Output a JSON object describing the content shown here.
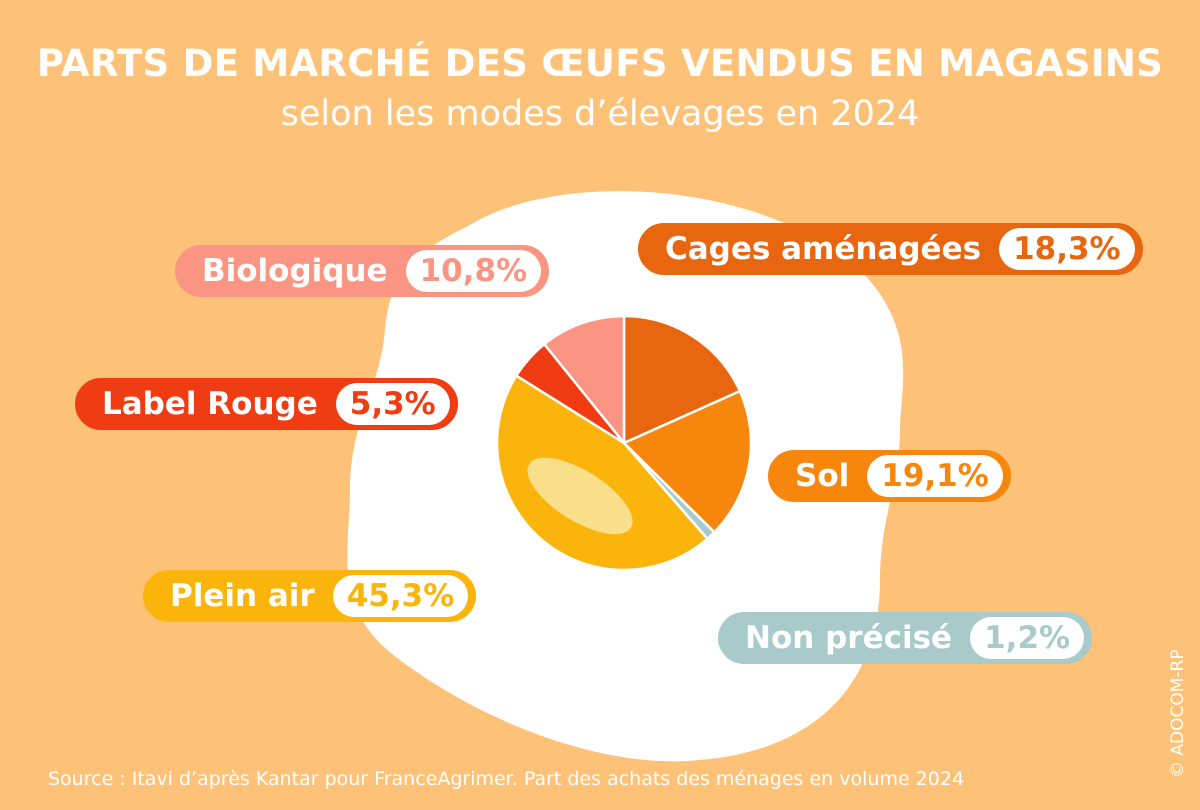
{
  "title": "PARTS DE MARCHÉ DES ŒUFS VENDUS EN MAGASINS",
  "subtitle": "selon les modes d’élevages en 2024",
  "source": "Source : Itavi d’après Kantar pour FranceAgrimer. Part des achats des ménages en volume 2024",
  "copyright": "© ADOCOM-RP",
  "chart_data": {
    "type": "pie",
    "title": "PARTS DE MARCHÉ DES ŒUFS VENDUS EN MAGASINS",
    "subtitle": "selon les modes d’élevages en 2024",
    "categories": [
      "Cages aménagées",
      "Sol",
      "Non précisé",
      "Plein air",
      "Label Rouge",
      "Biologique"
    ],
    "values": [
      18.3,
      19.1,
      1.2,
      45.3,
      5.3,
      10.8
    ],
    "value_labels": [
      "18,3%",
      "19,1%",
      "1,2%",
      "45,3%",
      "5,3%",
      "10,8%"
    ],
    "colors": [
      "#E8660F",
      "#F7860D",
      "#A9CACB",
      "#FBB40B",
      "#F03C12",
      "#F99582"
    ],
    "unit": "%"
  },
  "labels": {
    "cages": {
      "name": "Cages aménagées",
      "value": "18,3%"
    },
    "sol": {
      "name": "Sol",
      "value": "19,1%"
    },
    "non_precise": {
      "name": "Non précisé",
      "value": "1,2%"
    },
    "plein_air": {
      "name": "Plein air",
      "value": "45,3%"
    },
    "label_rouge": {
      "name": "Label Rouge",
      "value": "5,3%"
    },
    "biologique": {
      "name": "Biologique",
      "value": "10,8%"
    }
  }
}
